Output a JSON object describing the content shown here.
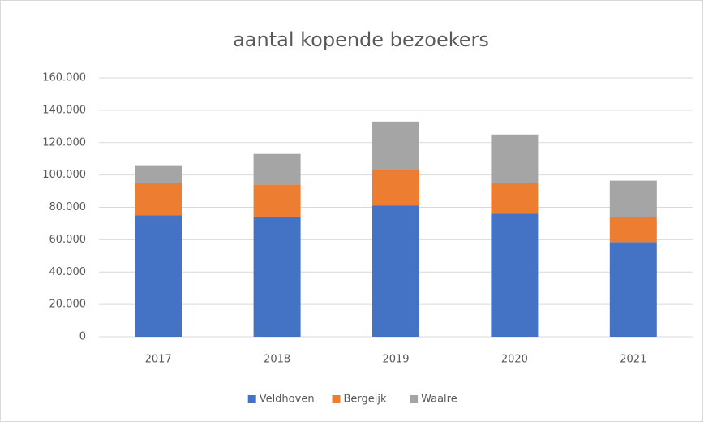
{
  "chart_data": {
    "type": "stacked_bar",
    "title": "aantal kopende bezoekers",
    "categories": [
      "2017",
      "2018",
      "2019",
      "2020",
      "2021"
    ],
    "series": [
      {
        "name": "Veldhoven",
        "color": "#4472c4",
        "values": [
          75000,
          74000,
          81000,
          76000,
          58500
        ]
      },
      {
        "name": "Bergeijk",
        "color": "#ed7d31",
        "values": [
          20000,
          20000,
          22000,
          19000,
          15500
        ]
      },
      {
        "name": "Waalre",
        "color": "#a5a5a5",
        "values": [
          11000,
          19000,
          30000,
          30000,
          22500
        ]
      }
    ],
    "ylim": [
      0,
      160000
    ],
    "yticks": [
      0,
      {
        "value": 20000,
        "label": "20.000"
      },
      {
        "value": 40000,
        "label": "40.000"
      },
      {
        "value": 60000,
        "label": "60.000"
      },
      {
        "value": 80000,
        "label": "80.000"
      },
      {
        "value": 100000,
        "label": "100.000"
      },
      {
        "value": 120000,
        "label": "120.000"
      },
      {
        "value": 140000,
        "label": "140.000"
      },
      {
        "value": 160000,
        "label": "160.000"
      }
    ],
    "grid": true,
    "legend": "bottom"
  }
}
